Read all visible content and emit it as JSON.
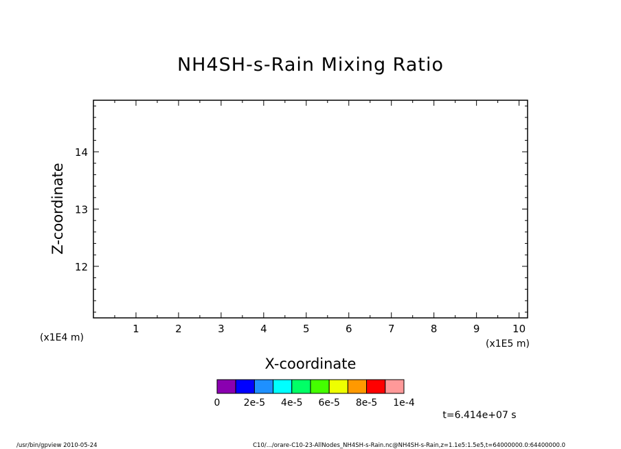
{
  "chart_data": {
    "type": "heatmap",
    "title": "NH4SH-s-Rain Mixing Ratio",
    "xlabel": "X-coordinate",
    "ylabel": "Z-coordinate",
    "x_unit": "(x1E5 m)",
    "y_unit": "(x1E4 m)",
    "x_ticks": [
      "1",
      "2",
      "3",
      "4",
      "5",
      "6",
      "7",
      "8",
      "9",
      "10"
    ],
    "y_ticks": [
      "12",
      "13",
      "14"
    ],
    "xlim": [
      0,
      10.2
    ],
    "ylim": [
      11.1,
      14.9
    ],
    "x_tick_values": [
      1,
      2,
      3,
      4,
      5,
      6,
      7,
      8,
      9,
      10
    ],
    "y_tick_values": [
      12,
      13,
      14
    ],
    "grid": false,
    "values": [],
    "colorbar": {
      "colors": [
        "#8a00b0",
        "#0000ff",
        "#1e90ff",
        "#00ffff",
        "#00ff66",
        "#44ff00",
        "#eeff00",
        "#ff9900",
        "#ff0000",
        "#ff9999"
      ],
      "labels": [
        "0",
        "2e-5",
        "4e-5",
        "6e-5",
        "8e-5",
        "1e-4"
      ]
    },
    "time_label": "t=6.414e+07 s"
  },
  "footer": {
    "left": "/usr/bin/gpview   2010-05-24",
    "right": "C10/.../orare-C10-23-AllNodes_NH4SH-s-Rain.nc@NH4SH-s-Rain,z=1.1e5:1.5e5,t=64000000.0:64400000.0"
  }
}
